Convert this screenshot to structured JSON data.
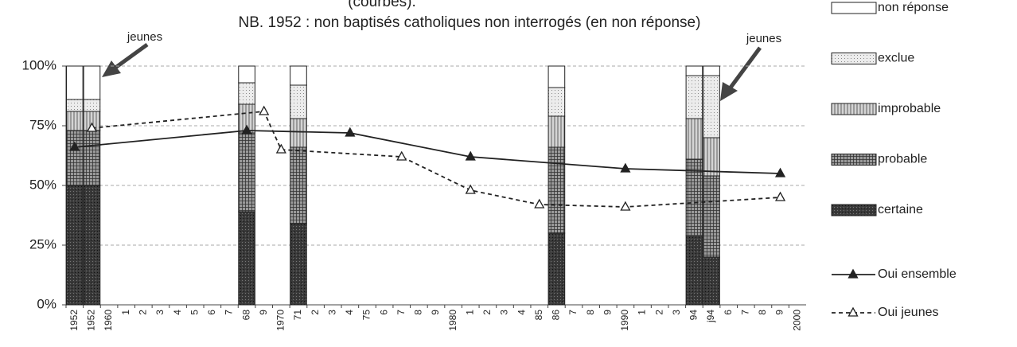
{
  "chart_data": {
    "type": "combo",
    "title": "(courbes).",
    "subtitle": "NB. 1952 : non baptisés catholiques non interrogés (en non réponse)",
    "annotations": [
      "jeunes",
      "jeunes"
    ],
    "categories": [
      "1952",
      "1952",
      "1960",
      "1",
      "2",
      "3",
      "4",
      "5",
      "6",
      "7",
      "68",
      "9",
      "1970",
      "71",
      "2",
      "3",
      "4",
      "75",
      "6",
      "7",
      "8",
      "9",
      "1980",
      "1",
      "2",
      "3",
      "4",
      "85",
      "86",
      "7",
      "8",
      "9",
      "1990",
      "1",
      "2",
      "3",
      "94",
      "j94",
      "6",
      "7",
      "8",
      "9",
      "2000"
    ],
    "ylim": [
      0,
      100
    ],
    "yticks": [
      {
        "value": 0,
        "label": "0%"
      },
      {
        "value": 25,
        "label": "25%"
      },
      {
        "value": 50,
        "label": "50%"
      },
      {
        "value": 75,
        "label": "75%"
      },
      {
        "value": 100,
        "label": "100%"
      }
    ],
    "grid": true,
    "legend": "right",
    "series": [
      {
        "name": "certaine",
        "type": "bar",
        "color": "#3a3a3a",
        "values": [
          50,
          50,
          null,
          null,
          null,
          null,
          null,
          null,
          null,
          null,
          39,
          null,
          null,
          34,
          null,
          null,
          null,
          null,
          null,
          null,
          null,
          null,
          null,
          null,
          null,
          null,
          null,
          null,
          30,
          null,
          null,
          null,
          null,
          null,
          null,
          null,
          29,
          20,
          null,
          null,
          null,
          null,
          null
        ]
      },
      {
        "name": "probable",
        "type": "bar",
        "color": "#9a9a9a",
        "values": [
          23,
          23,
          null,
          null,
          null,
          null,
          null,
          null,
          null,
          null,
          33,
          null,
          null,
          32,
          null,
          null,
          null,
          null,
          null,
          null,
          null,
          null,
          null,
          null,
          null,
          null,
          null,
          null,
          36,
          null,
          null,
          null,
          null,
          null,
          null,
          null,
          32,
          34,
          null,
          null,
          null,
          null,
          null
        ]
      },
      {
        "name": "improbable",
        "type": "bar",
        "color": "#d4d4d4",
        "values": [
          8,
          8,
          null,
          null,
          null,
          null,
          null,
          null,
          null,
          null,
          12,
          null,
          null,
          12,
          null,
          null,
          null,
          null,
          null,
          null,
          null,
          null,
          null,
          null,
          null,
          null,
          null,
          null,
          13,
          null,
          null,
          null,
          null,
          null,
          null,
          null,
          17,
          16,
          null,
          null,
          null,
          null,
          null
        ]
      },
      {
        "name": "exclue",
        "type": "bar",
        "color": "#ececec",
        "values": [
          5,
          5,
          null,
          null,
          null,
          null,
          null,
          null,
          null,
          null,
          9,
          null,
          null,
          14,
          null,
          null,
          null,
          null,
          null,
          null,
          null,
          null,
          null,
          null,
          null,
          null,
          null,
          null,
          12,
          null,
          null,
          null,
          null,
          null,
          null,
          null,
          18,
          26,
          null,
          null,
          null,
          null,
          null
        ]
      },
      {
        "name": "non réponse",
        "type": "bar",
        "color": "#ffffff",
        "values": [
          14,
          14,
          null,
          null,
          null,
          null,
          null,
          null,
          null,
          null,
          7,
          null,
          null,
          8,
          null,
          null,
          null,
          null,
          null,
          null,
          null,
          null,
          null,
          null,
          null,
          null,
          null,
          null,
          9,
          null,
          null,
          null,
          null,
          null,
          null,
          null,
          4,
          4,
          null,
          null,
          null,
          null,
          null
        ]
      },
      {
        "name": "Oui ensemble",
        "type": "line",
        "dash": false,
        "color": "#222222",
        "values": [
          66,
          null,
          null,
          null,
          null,
          null,
          null,
          null,
          null,
          null,
          73,
          null,
          null,
          null,
          null,
          null,
          72,
          null,
          null,
          null,
          null,
          null,
          null,
          62,
          null,
          null,
          null,
          null,
          null,
          null,
          null,
          null,
          57,
          null,
          null,
          null,
          null,
          null,
          null,
          null,
          null,
          55,
          null
        ]
      },
      {
        "name": "Oui jeunes",
        "type": "line",
        "dash": true,
        "color": "#222222",
        "values": [
          null,
          74,
          null,
          null,
          null,
          null,
          null,
          null,
          null,
          null,
          null,
          81,
          65,
          null,
          null,
          null,
          null,
          null,
          null,
          62,
          null,
          null,
          null,
          48,
          null,
          null,
          null,
          42,
          null,
          null,
          null,
          null,
          41,
          null,
          null,
          null,
          null,
          null,
          null,
          null,
          null,
          45,
          null
        ]
      }
    ]
  }
}
